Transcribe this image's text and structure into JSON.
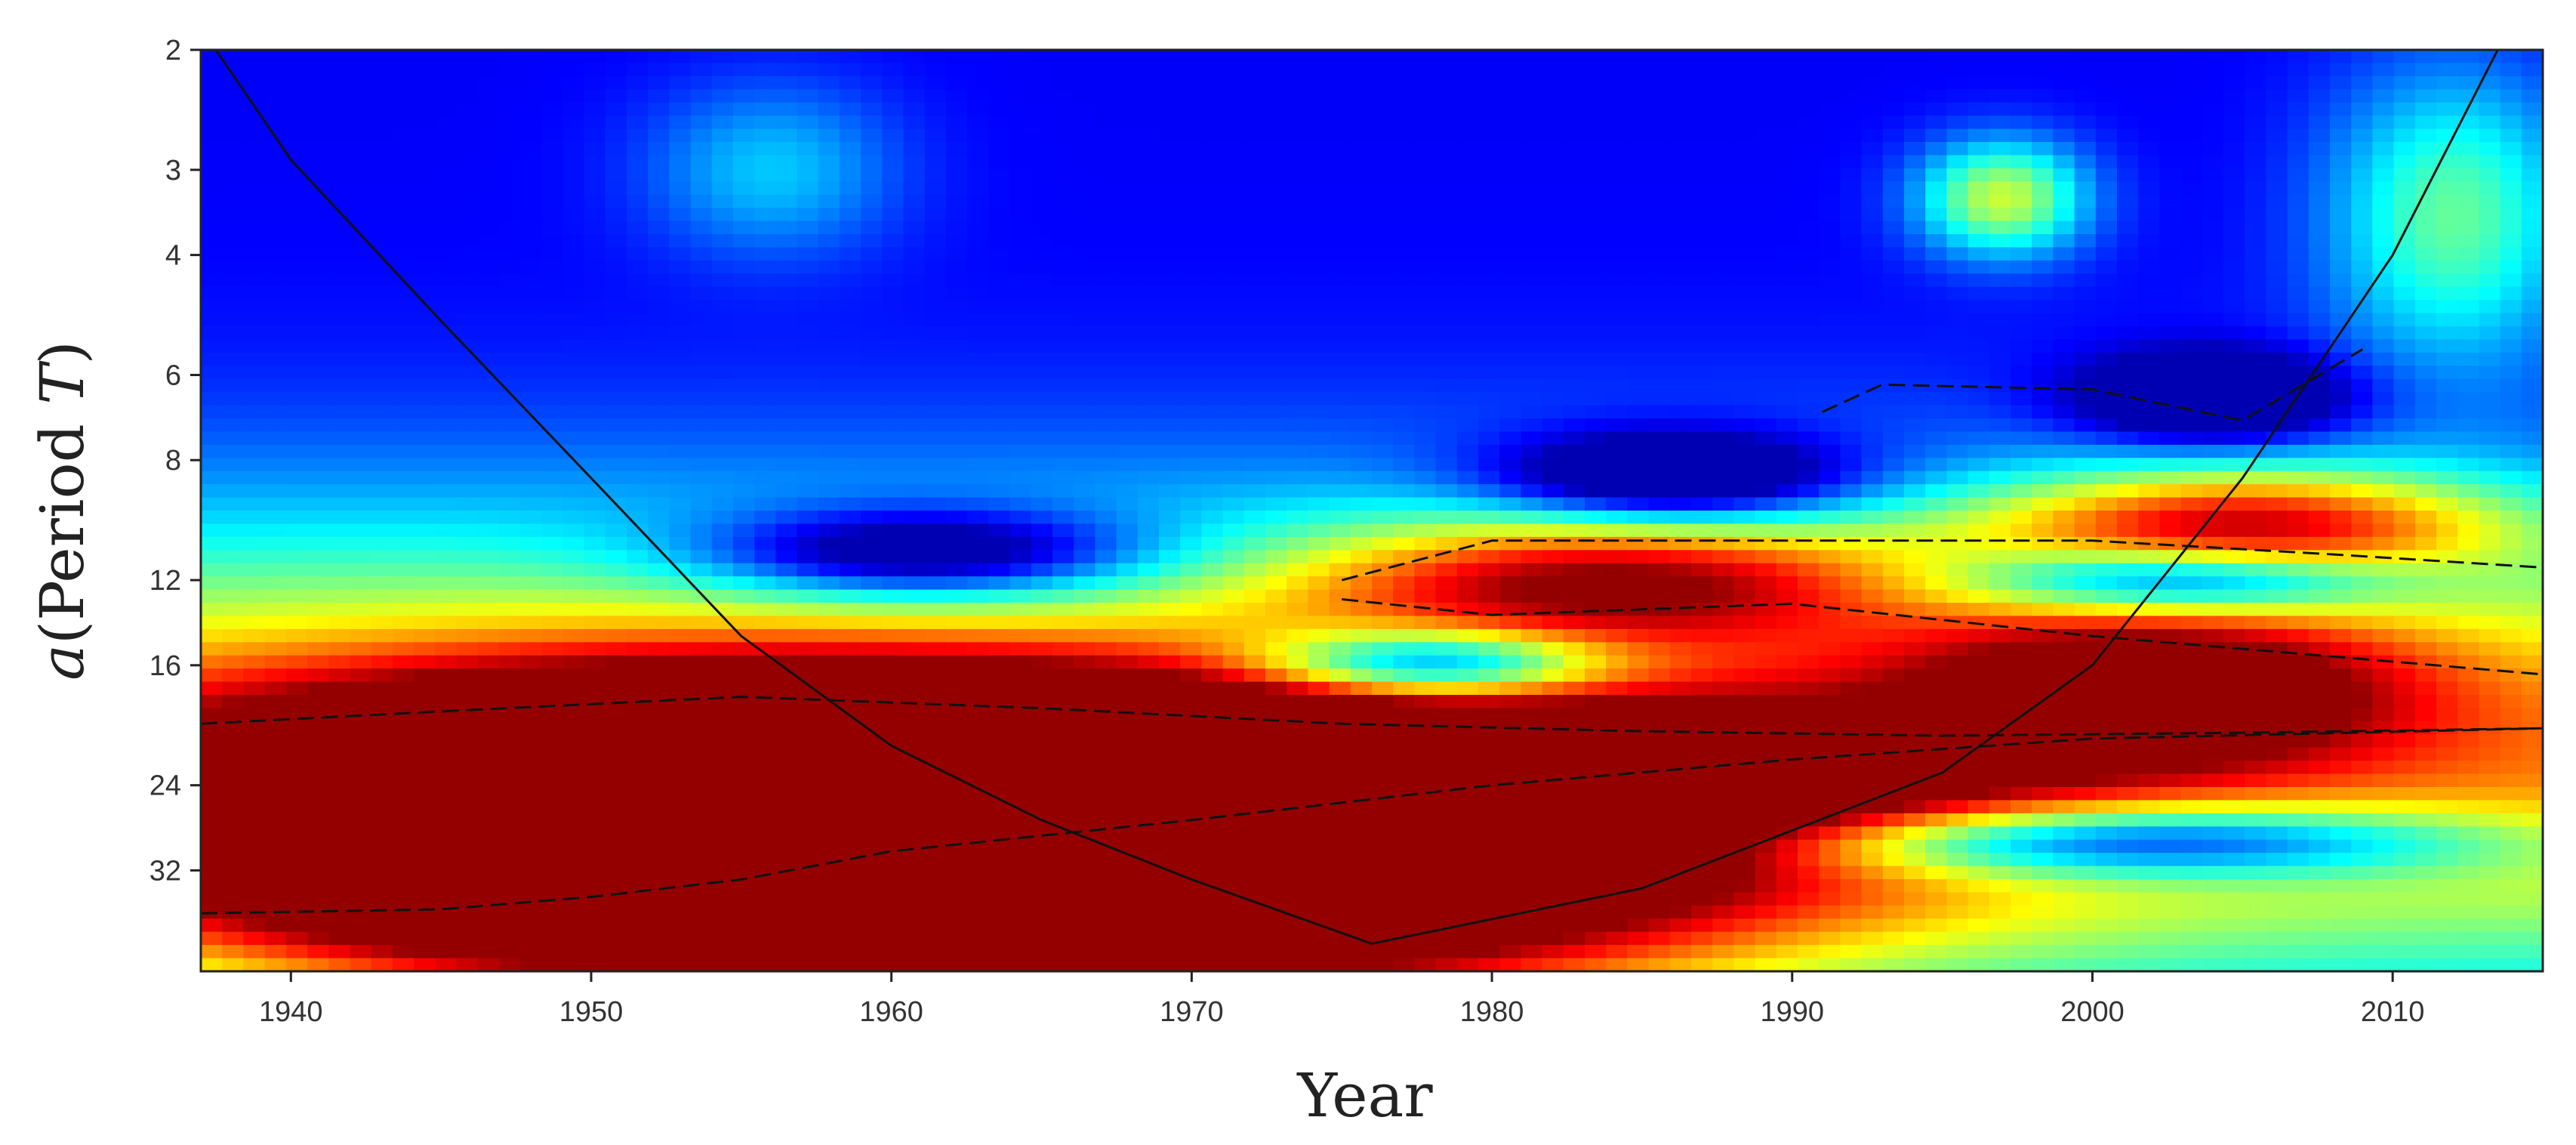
{
  "chart_data": {
    "type": "heatmap",
    "title": "",
    "xlabel": "Year",
    "ylabel": {
      "variable": "a",
      "text": "(Period ",
      "symbol": "T",
      "close": ")"
    },
    "xlim": [
      1937,
      2015
    ],
    "ylim": [
      2,
      45
    ],
    "y_scale": "log2",
    "x_ticks": [
      1940,
      1950,
      1960,
      1970,
      1980,
      1990,
      2000,
      2010
    ],
    "y_ticks": [
      2,
      3,
      4,
      6,
      8,
      12,
      16,
      24,
      32
    ],
    "colormap": "jet",
    "grid": false,
    "legend": "none",
    "cone_of_influence": {
      "x": [
        1937.5,
        1940,
        1945,
        1950,
        1955,
        1960,
        1965,
        1970,
        1976,
        1985,
        1995,
        2000,
        2005,
        2010,
        2013.5
      ],
      "y": [
        2,
        2.9,
        5,
        8.5,
        14.5,
        21,
        27,
        33,
        41,
        34,
        23,
        16,
        8.5,
        4,
        2
      ]
    },
    "features": [
      {
        "x": 1962,
        "y": 24,
        "sx": 11,
        "sy": 0.35,
        "v": 1.25
      },
      {
        "x": 1948,
        "y": 28,
        "sx": 10,
        "sy": 0.45,
        "v": 0.9
      },
      {
        "x": 1968,
        "y": 36,
        "sx": 14,
        "sy": 0.4,
        "v": 0.85
      },
      {
        "x": 1985,
        "y": 24,
        "sx": 9,
        "sy": 0.3,
        "v": 0.55
      },
      {
        "x": 2002,
        "y": 17,
        "sx": 6,
        "sy": 0.28,
        "v": 0.55
      },
      {
        "x": 2005,
        "y": 10,
        "sx": 6,
        "sy": 0.2,
        "v": 0.6
      },
      {
        "x": 1984,
        "y": 12,
        "sx": 7,
        "sy": 0.22,
        "v": 0.55
      },
      {
        "x": 1978,
        "y": 16,
        "sx": 4,
        "sy": 0.12,
        "v": -0.55
      },
      {
        "x": 1961,
        "y": 11,
        "sx": 5,
        "sy": 0.15,
        "v": -0.45
      },
      {
        "x": 1986,
        "y": 8.5,
        "sx": 4,
        "sy": 0.15,
        "v": -0.45
      },
      {
        "x": 2003,
        "y": 12,
        "sx": 5,
        "sy": 0.12,
        "v": -0.5
      },
      {
        "x": 2000,
        "y": 29,
        "sx": 9,
        "sy": 0.13,
        "v": -0.55
      },
      {
        "x": 2004,
        "y": 6.5,
        "sx": 3,
        "sy": 0.15,
        "v": -0.4
      },
      {
        "x": 1997,
        "y": 3.3,
        "sx": 2,
        "sy": 0.2,
        "v": 0.45
      },
      {
        "x": 2012,
        "y": 3.5,
        "sx": 3,
        "sy": 0.5,
        "v": 0.35
      },
      {
        "x": 1956,
        "y": 3,
        "sx": 3,
        "sy": 0.3,
        "v": 0.2
      }
    ],
    "significance_contours": [
      {
        "x": [
          1937,
          1945,
          1955,
          1965,
          1975,
          1985,
          1995,
          2005,
          2015
        ],
        "y": [
          19.5,
          18.7,
          17.8,
          18.5,
          19.5,
          20,
          20.3,
          20.1,
          19.8
        ]
      },
      {
        "x": [
          1937,
          1945,
          1950,
          1955,
          1960,
          1970,
          1980,
          1990,
          2000,
          2015
        ],
        "y": [
          37,
          36.5,
          35,
          33,
          30,
          27,
          24,
          22,
          20.5,
          19.8
        ]
      },
      {
        "x": [
          1975,
          1980,
          1990,
          2000,
          2008,
          2015
        ],
        "y": [
          12,
          10.5,
          10.5,
          10.5,
          11,
          11.5
        ]
      },
      {
        "x": [
          1975,
          1980,
          1990,
          2000,
          2015
        ],
        "y": [
          12.8,
          13.5,
          13,
          14.5,
          16.5
        ]
      },
      {
        "x": [
          1991,
          1993,
          2000,
          2005,
          2009
        ],
        "y": [
          6.8,
          6.2,
          6.3,
          7,
          5.5
        ]
      }
    ]
  }
}
